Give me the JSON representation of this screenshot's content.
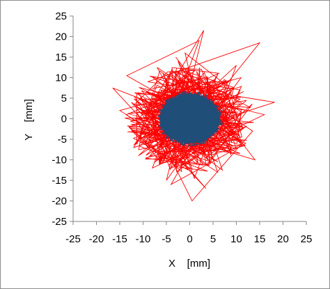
{
  "chart_data": {
    "type": "scatter",
    "title": "",
    "xlabel": "X    [mm]",
    "ylabel": "Y    [mm]",
    "xlim": [
      -25,
      25
    ],
    "ylim": [
      -25,
      25
    ],
    "xticks": [
      "-25",
      "-20",
      "-15",
      "-10",
      "-5",
      "0",
      "5",
      "10",
      "15",
      "20",
      "25"
    ],
    "yticks": [
      "25",
      "20",
      "15",
      "10",
      "5",
      "0",
      "-5",
      "-10",
      "-15",
      "-20",
      "-25"
    ],
    "grid": false,
    "legend": "none",
    "series": [
      {
        "style": "line",
        "color": "#ff0000",
        "description_values": "random-walk trajectory, approx. radius up to ~18 mm",
        "x": [
          0.5,
          15.0,
          -9.0,
          18.2,
          -12.0,
          3.0,
          -5.0,
          11.0,
          -15.0,
          6.0,
          -2.5,
          9.0,
          -10.5,
          0.5,
          13.5,
          -7.0,
          4.5,
          -1.0,
          8.0,
          -4.0,
          12.0,
          -13.5,
          2.0,
          -8.0,
          16.0,
          -6.0,
          1.0,
          10.0,
          -11.0,
          5.0,
          -3.0,
          14.0,
          -9.5,
          0.0,
          7.0,
          -12.5,
          3.5,
          -16.5,
          9.5,
          -2.0
        ],
        "y": [
          -2.0,
          18.5,
          9.0,
          4.0,
          -7.0,
          21.5,
          -15.0,
          10.0,
          2.0,
          -13.0,
          14.0,
          -8.5,
          5.0,
          -20.0,
          -3.0,
          12.5,
          -11.0,
          16.0,
          8.0,
          -16.0,
          -6.0,
          10.5,
          19.0,
          -12.0,
          1.0,
          7.0,
          -14.5,
          13.0,
          -9.0,
          3.0,
          15.0,
          -10.0,
          -2.0,
          11.0,
          -12.5,
          4.0,
          -17.0,
          7.5,
          -4.0,
          9.5
        ]
      },
      {
        "style": "dense-cluster",
        "color": "#1f4e79",
        "center": [
          0,
          0
        ],
        "radius_x": 7,
        "radius_y": 6.5
      }
    ]
  }
}
